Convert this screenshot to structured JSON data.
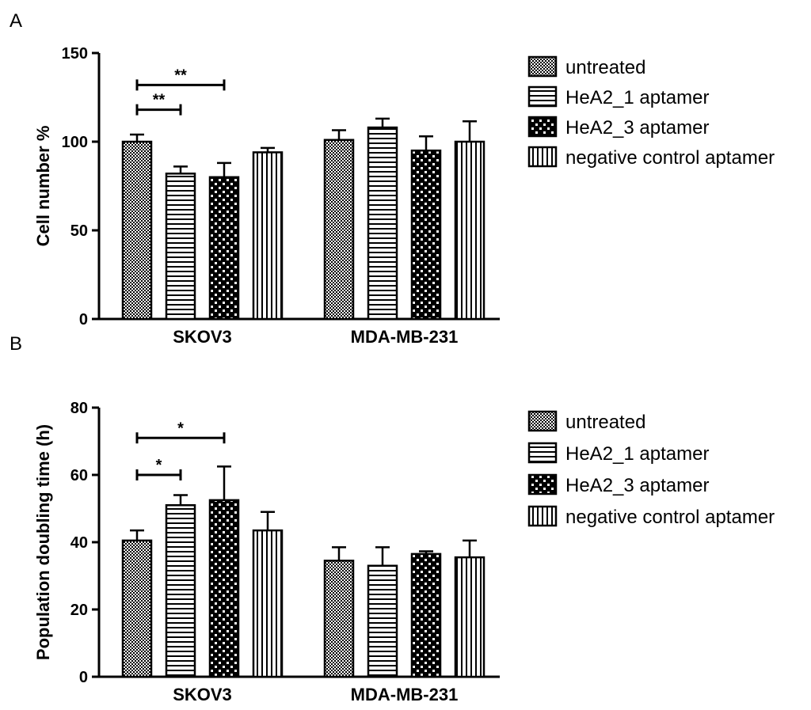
{
  "colors": {
    "ink": "#000000",
    "background": "#ffffff"
  },
  "chart_data": [
    {
      "type": "bar",
      "panel_label": "A",
      "ylabel": "Cell number %",
      "ylim": [
        0,
        150
      ],
      "yticks": [
        "0",
        "50",
        "100",
        "150"
      ],
      "ytick_values": [
        0,
        50,
        100,
        150
      ],
      "categories": [
        "SKOV3",
        "MDA-MB-231"
      ],
      "series": [
        {
          "name": "untreated",
          "pattern": "checker",
          "values": [
            100,
            101
          ],
          "errors": [
            4,
            5.5
          ]
        },
        {
          "name": "HeA2_1 aptamer",
          "pattern": "hlines",
          "values": [
            82,
            108
          ],
          "errors": [
            4,
            5
          ]
        },
        {
          "name": "HeA2_3 aptamer",
          "pattern": "bigchecker",
          "values": [
            80,
            95
          ],
          "errors": [
            8,
            8
          ]
        },
        {
          "name": "negative control aptamer",
          "pattern": "vlines",
          "values": [
            94,
            100
          ],
          "errors": [
            2.5,
            11.5
          ]
        }
      ],
      "significance": [
        {
          "category": "SKOV3",
          "from_series": 0,
          "to_series": 1,
          "level": 118,
          "label": "**"
        },
        {
          "category": "SKOV3",
          "from_series": 0,
          "to_series": 2,
          "level": 132,
          "label": "**"
        }
      ],
      "legend": [
        "untreated",
        "HeA2_1 aptamer",
        "HeA2_3 aptamer",
        "negative control aptamer"
      ],
      "legend_position": "right"
    },
    {
      "type": "bar",
      "panel_label": "B",
      "ylabel": "Population doubling time (h)",
      "ylim": [
        0,
        80
      ],
      "yticks": [
        "0",
        "20",
        "40",
        "60",
        "80"
      ],
      "ytick_values": [
        0,
        20,
        40,
        60,
        80
      ],
      "categories": [
        "SKOV3",
        "MDA-MB-231"
      ],
      "series": [
        {
          "name": "untreated",
          "pattern": "checker",
          "values": [
            40.5,
            34.5
          ],
          "errors": [
            3,
            4
          ]
        },
        {
          "name": "HeA2_1 aptamer",
          "pattern": "hlines",
          "values": [
            51,
            33
          ],
          "errors": [
            3,
            5.5
          ]
        },
        {
          "name": "HeA2_3 aptamer",
          "pattern": "bigchecker",
          "values": [
            52.5,
            36.5
          ],
          "errors": [
            10,
            0.8
          ]
        },
        {
          "name": "negative control aptamer",
          "pattern": "vlines",
          "values": [
            43.5,
            35.5
          ],
          "errors": [
            5.5,
            5
          ]
        }
      ],
      "significance": [
        {
          "category": "SKOV3",
          "from_series": 0,
          "to_series": 1,
          "level": 60,
          "label": "*"
        },
        {
          "category": "SKOV3",
          "from_series": 0,
          "to_series": 2,
          "level": 71,
          "label": "*"
        }
      ],
      "legend": [
        "untreated",
        "HeA2_1 aptamer",
        "HeA2_3 aptamer",
        "negative control aptamer"
      ],
      "legend_position": "right"
    }
  ]
}
